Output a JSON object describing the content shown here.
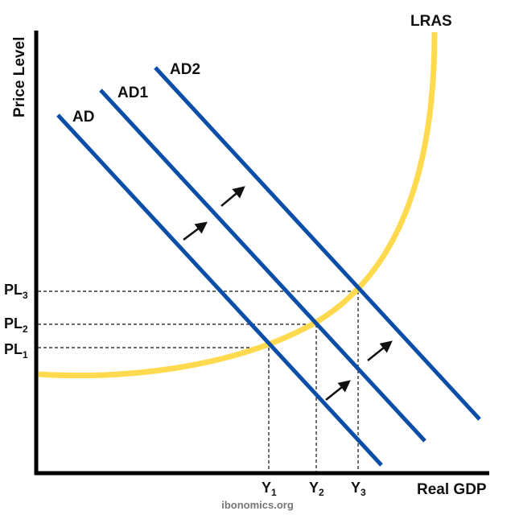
{
  "axes": {
    "y_label": "Price Level",
    "x_label": "Real GDP"
  },
  "curves": {
    "lras": {
      "label": "LRAS",
      "color": "#FFDA4F"
    },
    "ad": {
      "label": "AD",
      "color": "#0B4EA8"
    },
    "ad1": {
      "label": "AD1",
      "color": "#0B4EA8"
    },
    "ad2": {
      "label": "AD2",
      "color": "#0B4EA8"
    }
  },
  "price_levels": [
    {
      "base": "PL",
      "sub": "1"
    },
    {
      "base": "PL",
      "sub": "2"
    },
    {
      "base": "PL",
      "sub": "3"
    }
  ],
  "outputs": [
    {
      "base": "Y",
      "sub": "1"
    },
    {
      "base": "Y",
      "sub": "2"
    },
    {
      "base": "Y",
      "sub": "3"
    }
  ],
  "watermark": "ibonomics.org"
}
